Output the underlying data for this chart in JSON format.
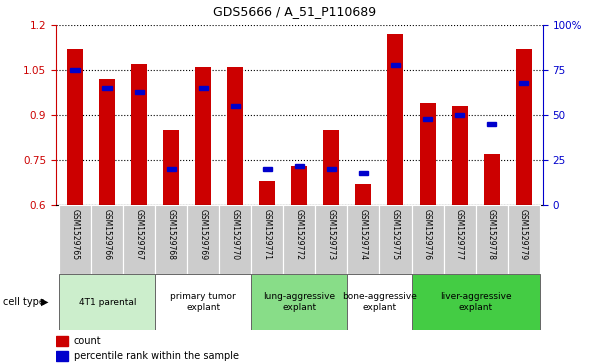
{
  "title": "GDS5666 / A_51_P110689",
  "samples": [
    "GSM1529765",
    "GSM1529766",
    "GSM1529767",
    "GSM1529768",
    "GSM1529769",
    "GSM1529770",
    "GSM1529771",
    "GSM1529772",
    "GSM1529773",
    "GSM1529774",
    "GSM1529775",
    "GSM1529776",
    "GSM1529777",
    "GSM1529778",
    "GSM1529779"
  ],
  "counts": [
    1.12,
    1.02,
    1.07,
    0.85,
    1.06,
    1.06,
    0.68,
    0.73,
    0.85,
    0.67,
    1.17,
    0.94,
    0.93,
    0.77,
    1.12
  ],
  "percentiles": [
    75,
    65,
    63,
    20,
    65,
    55,
    20,
    22,
    20,
    18,
    78,
    48,
    50,
    45,
    68
  ],
  "ylim_left": [
    0.6,
    1.2
  ],
  "ylim_right": [
    0,
    100
  ],
  "yticks_left": [
    0.6,
    0.75,
    0.9,
    1.05,
    1.2
  ],
  "ytick_labels_left": [
    "0.6",
    "0.75",
    "0.9",
    "1.05",
    "1.2"
  ],
  "yticks_right": [
    0,
    25,
    50,
    75,
    100
  ],
  "ytick_labels_right": [
    "0",
    "25",
    "50",
    "75",
    "100%"
  ],
  "bar_color": "#cc0000",
  "percentile_color": "#0000cc",
  "bar_width": 0.5,
  "baseline": 0.6,
  "group_defs": [
    {
      "start": 0,
      "end": 2,
      "color": "#cceecc",
      "label": "4T1 parental"
    },
    {
      "start": 3,
      "end": 5,
      "color": "#ffffff",
      "label": "primary tumor\nexplant"
    },
    {
      "start": 6,
      "end": 8,
      "color": "#88dd88",
      "label": "lung-aggressive\nexplant"
    },
    {
      "start": 9,
      "end": 10,
      "color": "#ffffff",
      "label": "bone-aggressive\nexplant"
    },
    {
      "start": 11,
      "end": 14,
      "color": "#44cc44",
      "label": "liver-aggressive\nexplant"
    }
  ],
  "axis_color_left": "#cc0000",
  "axis_color_right": "#0000cc",
  "sample_bg_color": "#cccccc",
  "legend_count_label": "count",
  "legend_pct_label": "percentile rank within the sample",
  "cell_type_label": "cell type"
}
